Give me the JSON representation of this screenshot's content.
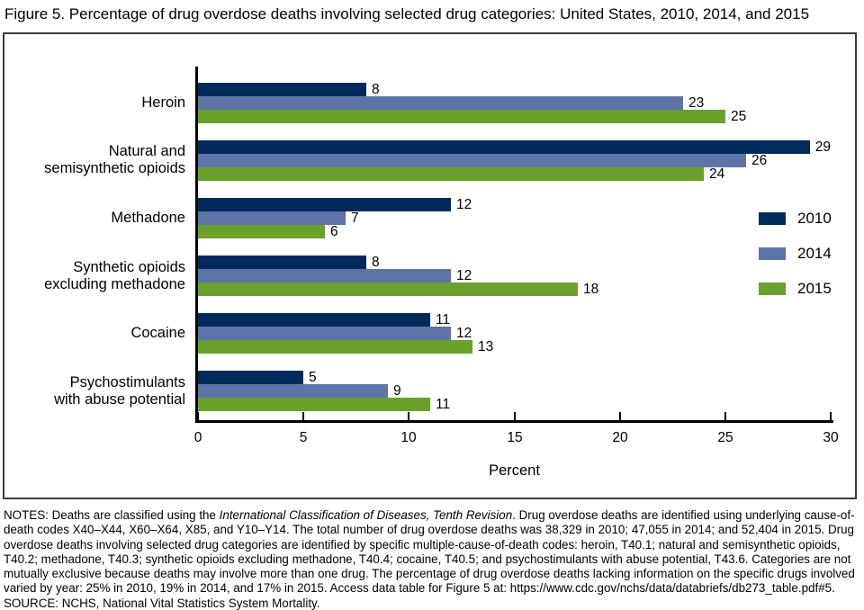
{
  "chart_data": {
    "type": "bar",
    "orientation": "horizontal",
    "title": "Figure 5. Percentage of drug overdose deaths involving selected drug categories: United States, 2010, 2014, and 2015",
    "categories": [
      "Heroin",
      "Natural and semisynthetic opioids",
      "Methadone",
      "Synthetic opioids excluding methadone",
      "Cocaine",
      "Psychostimulants with abuse potential"
    ],
    "category_lines": [
      [
        "Heroin"
      ],
      [
        "Natural and",
        "semisynthetic opioids"
      ],
      [
        "Methadone"
      ],
      [
        "Synthetic opioids",
        "excluding methadone"
      ],
      [
        "Cocaine"
      ],
      [
        "Psychostimulants",
        "with abuse potential"
      ]
    ],
    "series": [
      {
        "name": "2010",
        "color": "#012A5C",
        "values": [
          8,
          29,
          12,
          8,
          11,
          5
        ]
      },
      {
        "name": "2014",
        "color": "#5E74A7",
        "values": [
          23,
          26,
          7,
          12,
          12,
          9
        ]
      },
      {
        "name": "2015",
        "color": "#6AA02C",
        "values": [
          25,
          24,
          6,
          18,
          13,
          11
        ]
      }
    ],
    "xlabel": "Percent",
    "xlim": [
      0,
      30
    ],
    "xticks": [
      0,
      5,
      10,
      15,
      20,
      25,
      30
    ],
    "legend_position": "right",
    "grid": false,
    "value_labels_shown": true
  },
  "colors": {
    "axis": "#000000",
    "frame_border": "#3c3c3c",
    "text": "#000000"
  },
  "notes": {
    "segments": [
      {
        "text": "NOTES: Deaths are classified using the ",
        "italic": false
      },
      {
        "text": "International Classification of Diseases, Tenth Revision",
        "italic": true
      },
      {
        "text": ". Drug overdose deaths are identified using underlying cause-of-death codes X40–X44, X60–X64, X85, and Y10–Y14. The total number of drug overdose deaths was 38,329 in 2010; 47,055 in 2014; and 52,404 in 2015. Drug overdose deaths involving selected drug categories are identified by specific multiple-cause-of-death codes: heroin, T40.1; natural and semisynthetic opioids, T40.2; methadone, T40.3; synthetic opioids excluding methadone, T40.4; cocaine, T40.5; and psychostimulants with abuse potential, T43.6. Categories are not mutually exclusive because deaths may involve more than one drug. The percentage of drug overdose deaths lacking information on the specific drugs involved varied by year: 25% in 2010, 19% in 2014, and 17% in 2015. Access data table for Figure 5 at: https://www.cdc.gov/nchs/data/databriefs/db273_table.pdf#5.",
        "italic": false
      }
    ],
    "source": "SOURCE: NCHS, National Vital Statistics System Mortality."
  }
}
